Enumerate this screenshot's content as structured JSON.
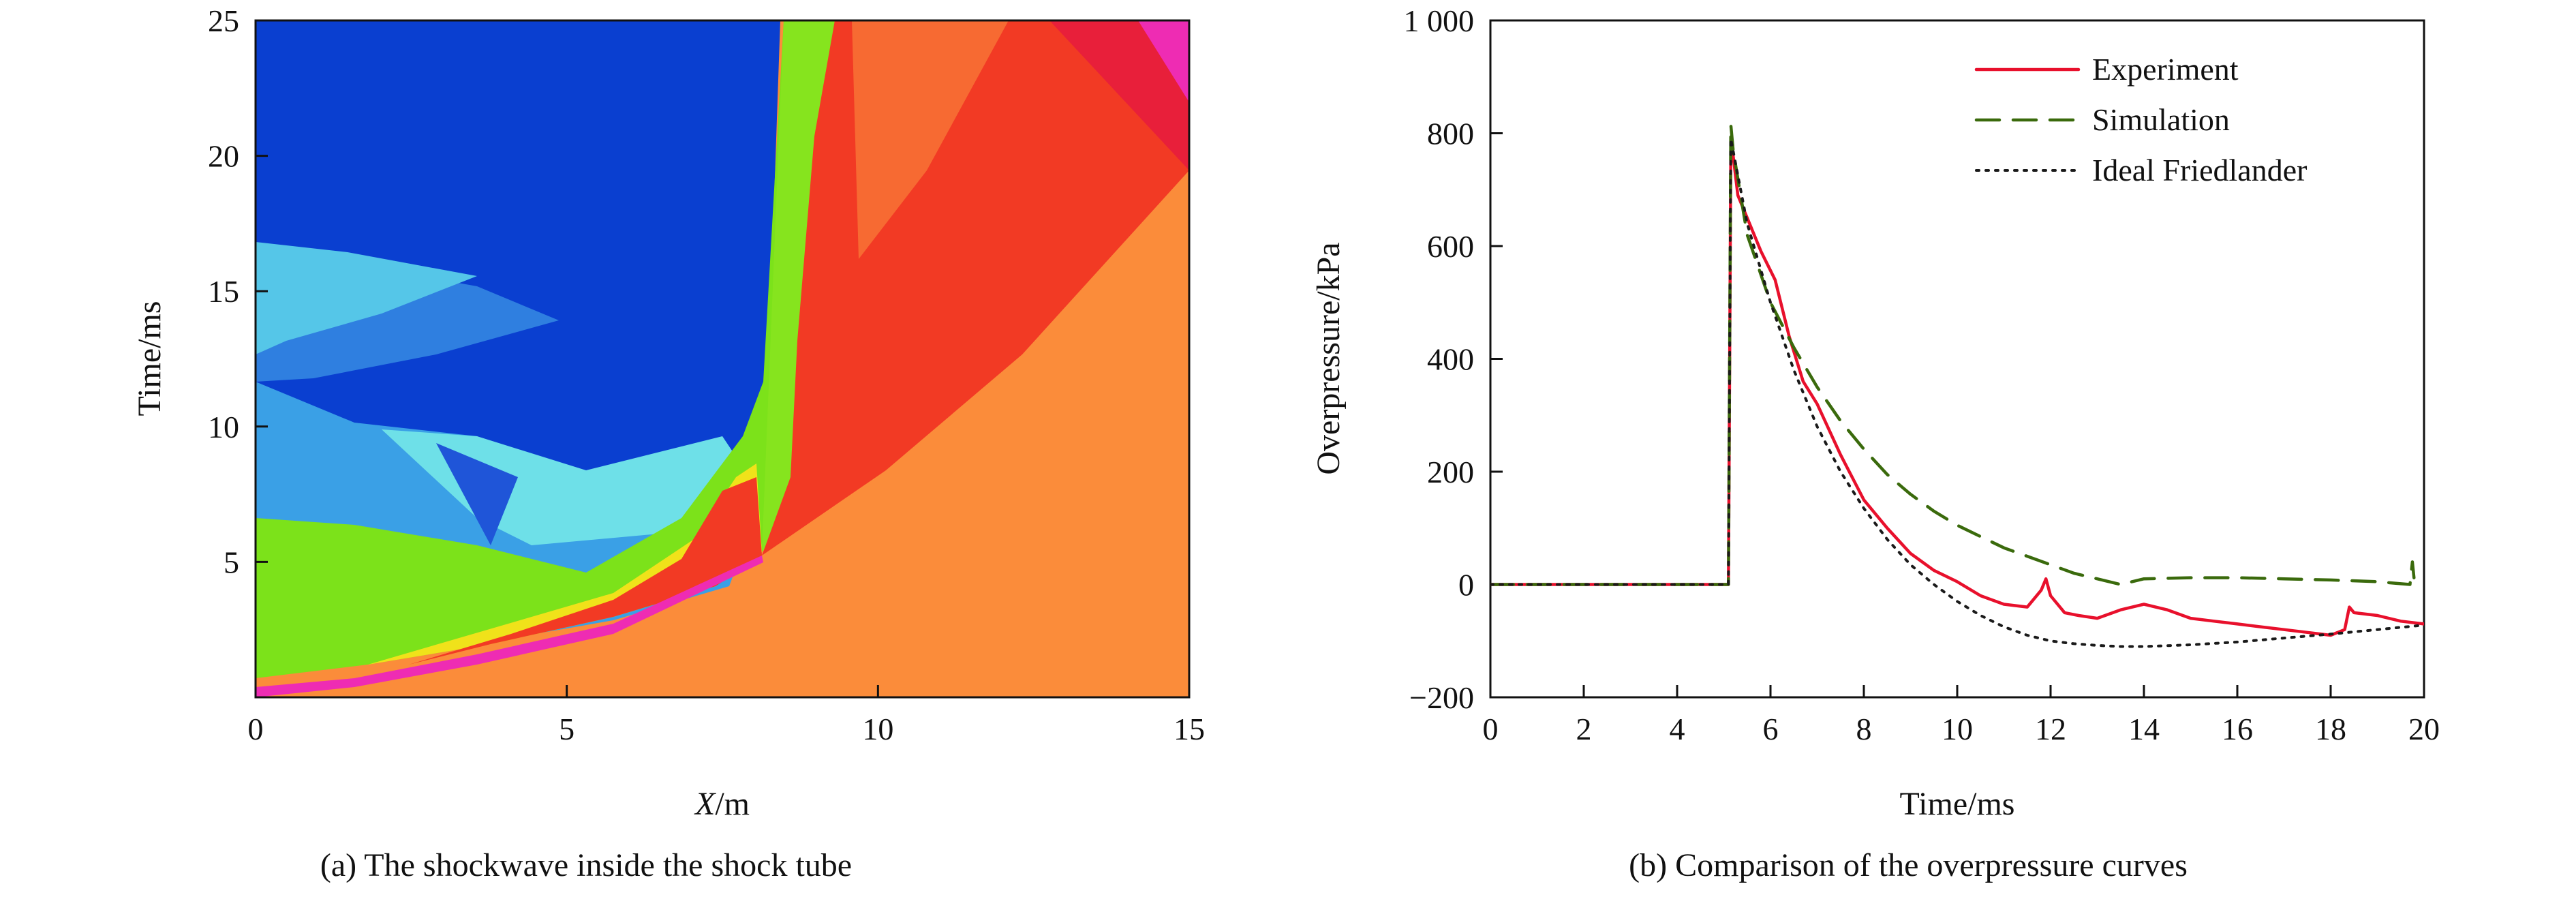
{
  "chart_data": [
    {
      "type": "heatmap",
      "caption": "(a) The shockwave inside the shock tube",
      "xlabel_italic": "X",
      "xlabel_unit": "/m",
      "ylabel": "Time/ms",
      "xlim": [
        0,
        15
      ],
      "ylim": [
        0,
        25
      ],
      "x_ticks": [
        0,
        5,
        10,
        15
      ],
      "y_ticks": [
        5,
        10,
        15,
        20,
        25
      ],
      "colors": {
        "deep_blue": "#0a3fd0",
        "light_blue": "#3aa0e6",
        "cyan": "#6ee0e8",
        "green": "#7ce21a",
        "orange": "#fb8c3a",
        "red": "#f23a24",
        "magenta": "#ee2cb3"
      }
    },
    {
      "type": "line",
      "caption": "(b) Comparison of the overpressure curves",
      "xlabel": "Time/ms",
      "ylabel": "Overpressure/kPa",
      "xlim": [
        0,
        20
      ],
      "ylim": [
        -200,
        1000
      ],
      "x_ticks": [
        0,
        2,
        4,
        6,
        8,
        10,
        12,
        14,
        16,
        18,
        20
      ],
      "y_ticks": [
        -200,
        0,
        200,
        400,
        600,
        800,
        1000
      ],
      "y_tick_labels": [
        "−200",
        "0",
        "200",
        "400",
        "600",
        "800",
        "1 000"
      ],
      "legend_position": "top-right",
      "series": [
        {
          "name": "Experiment",
          "color": "#e8102c",
          "style": "solid",
          "x": [
            0,
            5.1,
            5.15,
            5.2,
            5.3,
            5.5,
            5.8,
            6.1,
            6.4,
            6.7,
            7.0,
            7.5,
            8.0,
            8.5,
            9.0,
            9.5,
            10.0,
            10.5,
            11.0,
            11.5,
            11.8,
            11.9,
            12.0,
            12.3,
            12.6,
            13.0,
            13.5,
            14.0,
            14.5,
            15.0,
            15.5,
            16.0,
            16.5,
            17.0,
            17.5,
            18.0,
            18.3,
            18.4,
            18.5,
            19.0,
            19.5,
            20.0
          ],
          "y": [
            0,
            0,
            775,
            760,
            690,
            650,
            590,
            540,
            440,
            360,
            320,
            230,
            150,
            100,
            55,
            25,
            5,
            -20,
            -35,
            -40,
            -10,
            10,
            -20,
            -50,
            -55,
            -60,
            -45,
            -35,
            -45,
            -60,
            -65,
            -70,
            -75,
            -80,
            -85,
            -90,
            -80,
            -40,
            -50,
            -55,
            -65,
            -70
          ]
        },
        {
          "name": "Simulation",
          "color": "#3a6a0c",
          "style": "dashed",
          "x": [
            0,
            5.1,
            5.15,
            5.2,
            5.5,
            6.0,
            6.5,
            7.0,
            7.5,
            8.0,
            8.5,
            9.0,
            9.5,
            10.0,
            10.5,
            11.0,
            11.5,
            12.0,
            12.5,
            13.0,
            13.5,
            14.0,
            15.0,
            16.0,
            17.0,
            18.0,
            19.0,
            19.7,
            19.75,
            19.8
          ],
          "y": [
            0,
            0,
            815,
            770,
            620,
            500,
            420,
            350,
            290,
            240,
            195,
            160,
            130,
            105,
            85,
            65,
            50,
            35,
            20,
            10,
            0,
            10,
            12,
            12,
            10,
            8,
            5,
            0,
            40,
            0
          ]
        },
        {
          "name": "Ideal Friedlander",
          "color": "#1a1a1a",
          "style": "dotted",
          "x": [
            0,
            5.1,
            5.15,
            5.5,
            6.0,
            6.5,
            7.0,
            7.5,
            8.0,
            8.5,
            9.0,
            9.5,
            10.0,
            10.5,
            11.0,
            11.5,
            12.0,
            12.5,
            13.0,
            13.5,
            14.0,
            15.0,
            16.0,
            17.0,
            18.0,
            19.0,
            20.0
          ],
          "y": [
            0,
            0,
            790,
            640,
            500,
            380,
            280,
            200,
            135,
            80,
            35,
            0,
            -30,
            -55,
            -75,
            -90,
            -100,
            -105,
            -108,
            -110,
            -110,
            -107,
            -102,
            -95,
            -88,
            -80,
            -72
          ]
        }
      ]
    }
  ]
}
